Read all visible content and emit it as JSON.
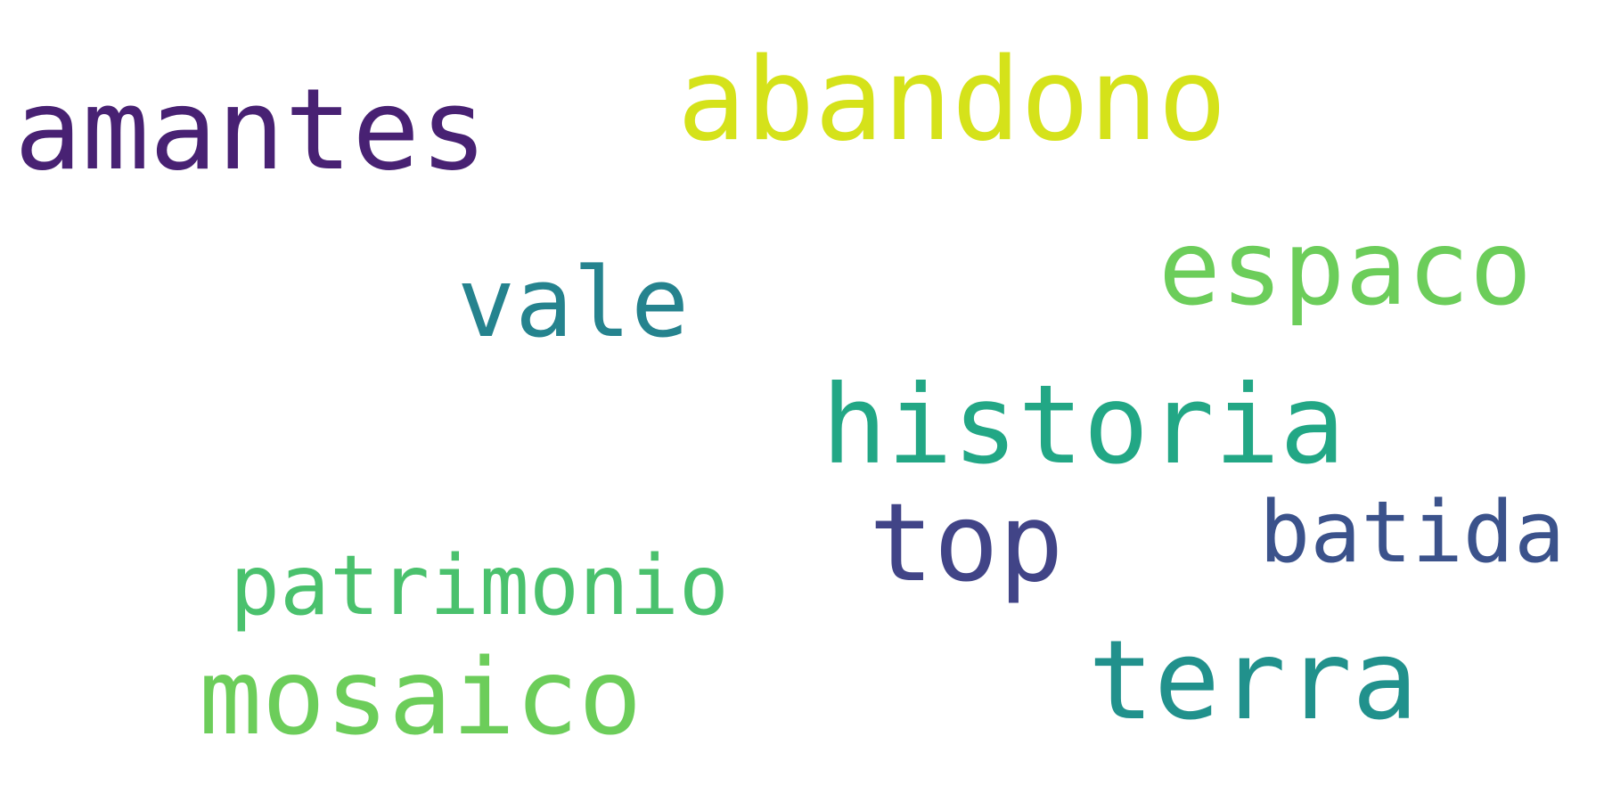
{
  "words": [
    {
      "text": "amantes",
      "color": "#482173"
    },
    {
      "text": "abandono",
      "color": "#d5e21a"
    },
    {
      "text": "espaco",
      "color": "#6ccd5a"
    },
    {
      "text": "vale",
      "color": "#25838e"
    },
    {
      "text": "historia",
      "color": "#22a785"
    },
    {
      "text": "top",
      "color": "#414487"
    },
    {
      "text": "batida",
      "color": "#3b528b"
    },
    {
      "text": "patrimonio",
      "color": "#4ac16d"
    },
    {
      "text": "mosaico",
      "color": "#6ccd5a"
    },
    {
      "text": "terra",
      "color": "#21918c"
    }
  ]
}
